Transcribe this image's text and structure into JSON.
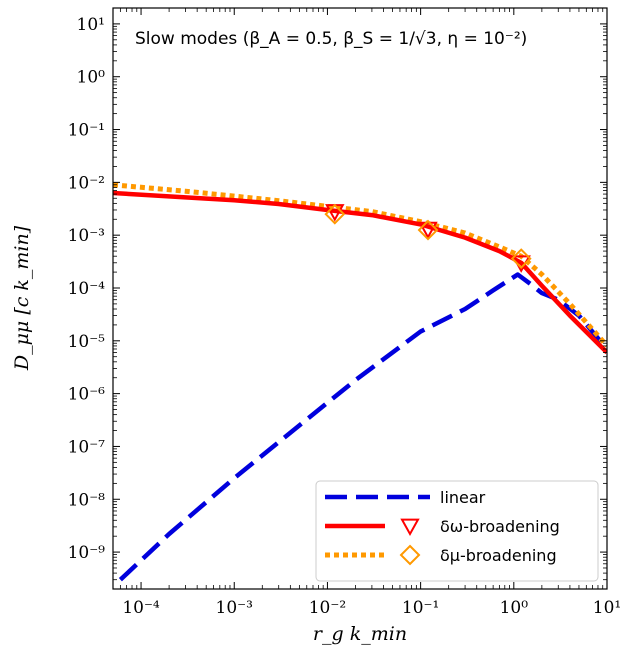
{
  "chart_data": {
    "type": "line",
    "annotation": "Slow modes (β_A = 0.5, β_S = 1/√3, η = 10⁻²)",
    "xlabel": "r_g k_min",
    "ylabel": "D_μμ [c k_min]",
    "x_scale": "log",
    "y_scale": "log",
    "xlim": [
      5e-05,
      10
    ],
    "ylim": [
      2e-10,
      20
    ],
    "x_ticks": [
      {
        "value": 0.0001,
        "label": "10⁻⁴"
      },
      {
        "value": 0.001,
        "label": "10⁻³"
      },
      {
        "value": 0.01,
        "label": "10⁻²"
      },
      {
        "value": 0.1,
        "label": "10⁻¹"
      },
      {
        "value": 1,
        "label": "10⁰"
      },
      {
        "value": 10,
        "label": "10¹"
      }
    ],
    "y_ticks": [
      {
        "value": 1e-09,
        "label": "10⁻⁹"
      },
      {
        "value": 1e-08,
        "label": "10⁻⁸"
      },
      {
        "value": 1e-07,
        "label": "10⁻⁷"
      },
      {
        "value": 1e-06,
        "label": "10⁻⁶"
      },
      {
        "value": 1e-05,
        "label": "10⁻⁵"
      },
      {
        "value": 0.0001,
        "label": "10⁻⁴"
      },
      {
        "value": 0.001,
        "label": "10⁻³"
      },
      {
        "value": 0.01,
        "label": "10⁻²"
      },
      {
        "value": 0.1,
        "label": "10⁻¹"
      },
      {
        "value": 1,
        "label": "10⁰"
      },
      {
        "value": 10,
        "label": "10¹"
      }
    ],
    "legend_position": "lower-right",
    "series": [
      {
        "name": "linear",
        "style": "dashed",
        "color": "#0000dd",
        "x": [
          6e-05,
          0.0002,
          0.001,
          0.005,
          0.02,
          0.1,
          0.3,
          0.6,
          1.1,
          1.5,
          2.0,
          3.0,
          5.0,
          10
        ],
        "y": [
          3e-10,
          2.2e-09,
          2.5e-08,
          2.5e-07,
          1.8e-06,
          1.5e-05,
          4e-05,
          9e-05,
          0.00018,
          0.00012,
          8e-05,
          6e-05,
          3e-05,
          7e-06
        ]
      },
      {
        "name": "δω-broadening",
        "style": "solid",
        "color": "#ff0000",
        "x": [
          5e-05,
          0.0003,
          0.001,
          0.003,
          0.01,
          0.03,
          0.1,
          0.3,
          0.7,
          1.2,
          2.0,
          4.0,
          10
        ],
        "y": [
          0.0063,
          0.0052,
          0.0046,
          0.0039,
          0.003,
          0.0024,
          0.0016,
          0.0009,
          0.0005,
          0.0003,
          0.00011,
          3e-05,
          6e-06
        ],
        "markers": {
          "shape": "triangle-down",
          "x": [
            0.012,
            0.12,
            1.2
          ],
          "y": [
            0.0028,
            0.0013,
            0.0003
          ]
        }
      },
      {
        "name": "δμ-broadening",
        "style": "dotted",
        "color": "#ff9900",
        "x": [
          5e-05,
          0.0003,
          0.001,
          0.003,
          0.01,
          0.03,
          0.1,
          0.3,
          0.7,
          1.2,
          2.0,
          4.0,
          10
        ],
        "y": [
          0.009,
          0.0068,
          0.0055,
          0.0045,
          0.0035,
          0.0028,
          0.0018,
          0.0011,
          0.0006,
          0.0004,
          0.00018,
          5e-05,
          8e-06
        ],
        "markers": {
          "shape": "diamond",
          "x": [
            0.012,
            0.12,
            1.2
          ],
          "y": [
            0.0025,
            0.00125,
            0.00036
          ]
        }
      }
    ]
  }
}
